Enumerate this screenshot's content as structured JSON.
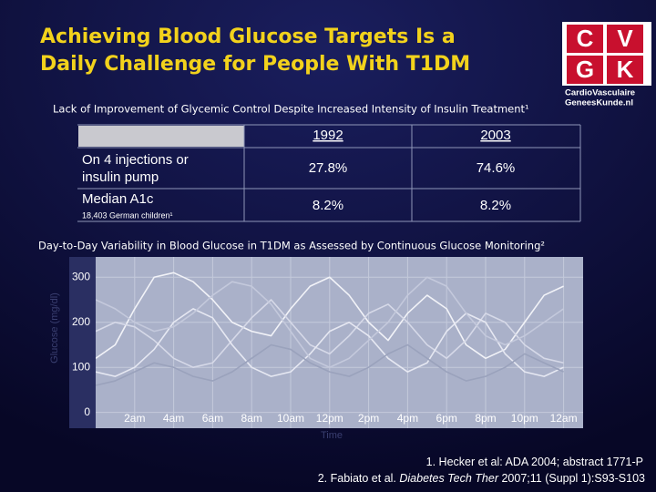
{
  "header": {
    "title": [
      "Achieving Blood Glucose Targets Is a",
      "Daily Challenge for People With T1DM"
    ],
    "logo": {
      "letters": [
        "C",
        "V",
        "G",
        "K"
      ],
      "text": [
        "CardioVasculaire",
        "GeneesKunde.nl"
      ]
    }
  },
  "table": {
    "caption": "Lack of Improvement of Glycemic Control Despite Increased Intensity of Insulin Treatment¹",
    "columns": [
      "1992",
      "2003"
    ],
    "rows": [
      {
        "label": [
          "On 4 injections or",
          "insulin pump"
        ],
        "values": [
          "27.8%",
          "74.6%"
        ]
      },
      {
        "label": [
          "Median A1c"
        ],
        "note": "18,403 German children¹",
        "values": [
          "8.2%",
          "8.2%"
        ]
      }
    ]
  },
  "chart_data": {
    "type": "line",
    "title": "Day-to-Day Variability in Blood Glucose in T1DM as Assessed by Continuous Glucose Monitoring²",
    "xlabel": "Time",
    "ylabel": "Glucose (mg/dl)",
    "x": [
      0,
      1,
      2,
      3,
      4,
      5,
      6,
      7,
      8,
      9,
      10,
      11,
      12,
      13,
      14,
      15,
      16,
      17,
      18,
      19,
      20,
      21,
      22,
      23,
      24
    ],
    "xlim": [
      0,
      25
    ],
    "ylim": [
      -35,
      345
    ],
    "xticks": [
      {
        "value": 2,
        "label": "2am"
      },
      {
        "value": 4,
        "label": "4am"
      },
      {
        "value": 6,
        "label": "6am"
      },
      {
        "value": 8,
        "label": "8am"
      },
      {
        "value": 10,
        "label": "10am"
      },
      {
        "value": 12,
        "label": "12pm"
      },
      {
        "value": 14,
        "label": "2pm"
      },
      {
        "value": 16,
        "label": "4pm"
      },
      {
        "value": 18,
        "label": "6pm"
      },
      {
        "value": 20,
        "label": "8pm"
      },
      {
        "value": 22,
        "label": "10pm"
      },
      {
        "value": 24,
        "label": "12am"
      }
    ],
    "yticks": [
      0,
      100,
      200,
      300
    ],
    "grid": true,
    "series": [
      {
        "color": "#f2f3f8",
        "values": [
          120,
          150,
          230,
          300,
          310,
          290,
          250,
          200,
          180,
          170,
          230,
          280,
          300,
          260,
          200,
          160,
          220,
          260,
          230,
          150,
          120,
          140,
          200,
          260,
          280
        ]
      },
      {
        "color": "#d6d9e8",
        "values": [
          180,
          200,
          190,
          160,
          120,
          100,
          110,
          160,
          210,
          250,
          200,
          150,
          130,
          170,
          220,
          240,
          200,
          150,
          120,
          160,
          220,
          200,
          150,
          120,
          110
        ]
      },
      {
        "color": "#e6e8f2",
        "values": [
          90,
          80,
          100,
          140,
          200,
          230,
          210,
          150,
          100,
          80,
          90,
          130,
          180,
          200,
          170,
          120,
          90,
          110,
          180,
          220,
          200,
          130,
          90,
          80,
          100
        ]
      },
      {
        "color": "#c4c9dc",
        "values": [
          250,
          230,
          200,
          180,
          190,
          220,
          260,
          290,
          280,
          240,
          180,
          120,
          100,
          120,
          160,
          200,
          260,
          300,
          280,
          220,
          170,
          150,
          170,
          200,
          230
        ]
      },
      {
        "color": "#9aa2bc",
        "values": [
          60,
          70,
          90,
          110,
          100,
          80,
          70,
          90,
          120,
          150,
          140,
          110,
          90,
          80,
          100,
          130,
          150,
          120,
          90,
          70,
          80,
          100,
          130,
          110,
          90
        ]
      }
    ]
  },
  "footnotes": [
    {
      "parts": [
        "1. Hecker et al: ADA 2004; abstract 1771-P"
      ]
    },
    {
      "parts": [
        "2. Fabiato et al. ",
        "Diabetes Tech Ther",
        " 2007;11 (Suppl 1):S93-S103"
      ]
    }
  ]
}
